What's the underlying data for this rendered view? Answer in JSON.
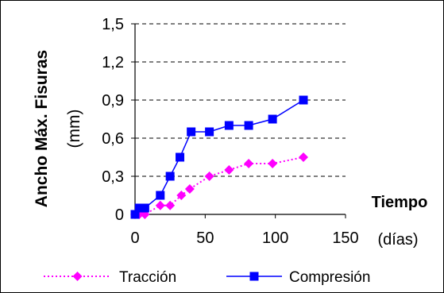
{
  "chart_data": {
    "type": "line",
    "ylabel": "Ancho Máx. Fisuras",
    "ylabel_unit": "(mm)",
    "xlabel": "Tiempo",
    "xlabel_unit": "(días)",
    "xlim": [
      0,
      150
    ],
    "ylim": [
      0,
      1.5
    ],
    "x_ticks": [
      "0",
      "50",
      "100",
      "150"
    ],
    "y_ticks": [
      "0",
      "0,3",
      "0,6",
      "0,9",
      "1,2",
      "1,5"
    ],
    "grid": "horizontal dashed",
    "legend_position": "bottom",
    "series": [
      {
        "name": "Tracción",
        "color": "#ff00ff",
        "style": "dotted",
        "marker": "diamond",
        "x": [
          0,
          3,
          7,
          18,
          25,
          33,
          39,
          53,
          67,
          81,
          98,
          120
        ],
        "y": [
          0,
          0,
          0,
          0.07,
          0.07,
          0.15,
          0.2,
          0.3,
          0.35,
          0.4,
          0.4,
          0.45
        ]
      },
      {
        "name": "Compresión",
        "color": "#0000ff",
        "style": "solid",
        "marker": "square",
        "x": [
          0,
          3,
          7,
          18,
          25,
          32,
          40,
          53,
          67,
          81,
          98,
          120
        ],
        "y": [
          0,
          0.05,
          0.05,
          0.15,
          0.3,
          0.45,
          0.65,
          0.65,
          0.7,
          0.7,
          0.75,
          0.9
        ]
      }
    ]
  }
}
